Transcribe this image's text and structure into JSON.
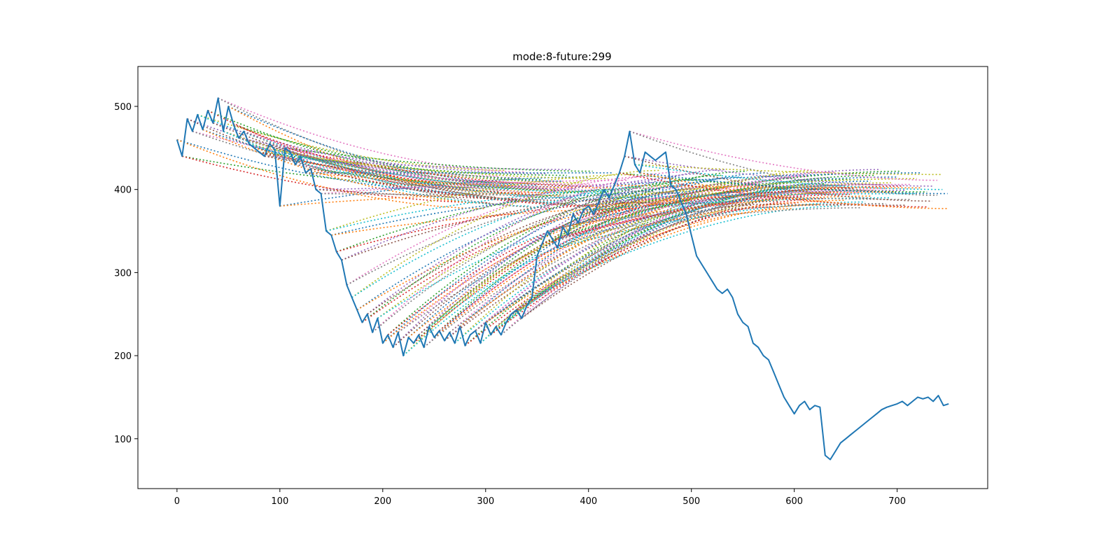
{
  "chart_data": {
    "type": "line",
    "title": "mode:8-future:299",
    "xlabel": "",
    "ylabel": "",
    "xlim": [
      -38,
      788
    ],
    "ylim": [
      40,
      548
    ],
    "xticks": [
      0,
      100,
      200,
      300,
      400,
      500,
      600,
      700
    ],
    "yticks": [
      100,
      200,
      300,
      400,
      500
    ],
    "grid": false,
    "series": [
      {
        "style": "solid",
        "color": "#1f77b4",
        "x": [
          0,
          5,
          10,
          15,
          20,
          25,
          30,
          35,
          40,
          45,
          50,
          55,
          60,
          65,
          70,
          75,
          80,
          85,
          90,
          95,
          100,
          105,
          110,
          115,
          120,
          125,
          130,
          135,
          140,
          145,
          150,
          155,
          160,
          165,
          170,
          175,
          180,
          185,
          190,
          195,
          200,
          205,
          210,
          215,
          220,
          225,
          230,
          235,
          240,
          245,
          250,
          255,
          260,
          265,
          270,
          275,
          280,
          285,
          290,
          295,
          300,
          305,
          310,
          315,
          320,
          325,
          330,
          335,
          340,
          345,
          350,
          355,
          360,
          365,
          370,
          375,
          380,
          385,
          390,
          395,
          400,
          405,
          410,
          415,
          420,
          425,
          430,
          435,
          440,
          445,
          450,
          455,
          460,
          465,
          470,
          475,
          480,
          485,
          490,
          495,
          500,
          505,
          510,
          515,
          520,
          525,
          530,
          535,
          540,
          545,
          550,
          555,
          560,
          565,
          570,
          575,
          580,
          585,
          590,
          595,
          600,
          605,
          610,
          615,
          620,
          625,
          630,
          635,
          640,
          645,
          650,
          655,
          660,
          665,
          670,
          675,
          680,
          685,
          690,
          695,
          700,
          705,
          710,
          715,
          720,
          725,
          730,
          735,
          740,
          745,
          750
        ],
        "values": [
          460,
          440,
          485,
          470,
          490,
          472,
          495,
          480,
          510,
          470,
          500,
          478,
          462,
          470,
          455,
          450,
          445,
          440,
          455,
          448,
          380,
          450,
          445,
          430,
          440,
          420,
          425,
          400,
          395,
          350,
          345,
          325,
          315,
          285,
          270,
          255,
          240,
          250,
          228,
          245,
          215,
          225,
          210,
          228,
          200,
          222,
          215,
          225,
          210,
          235,
          222,
          230,
          218,
          228,
          215,
          235,
          212,
          225,
          230,
          215,
          240,
          225,
          235,
          225,
          240,
          250,
          255,
          245,
          260,
          270,
          320,
          335,
          350,
          340,
          330,
          355,
          345,
          370,
          360,
          375,
          380,
          370,
          385,
          400,
          390,
          405,
          420,
          440,
          470,
          430,
          420,
          445,
          440,
          435,
          440,
          445,
          405,
          400,
          385,
          370,
          345,
          320,
          310,
          300,
          290,
          280,
          275,
          280,
          270,
          250,
          240,
          235,
          215,
          210,
          200,
          195,
          180,
          165,
          150,
          140,
          130,
          140,
          145,
          135,
          140,
          138,
          80,
          75,
          85,
          95,
          100,
          105,
          110,
          115,
          120,
          125,
          130,
          135,
          138,
          140,
          142,
          145,
          140,
          145,
          150,
          148,
          150,
          145,
          152,
          140,
          142
        ]
      }
    ]
  }
}
